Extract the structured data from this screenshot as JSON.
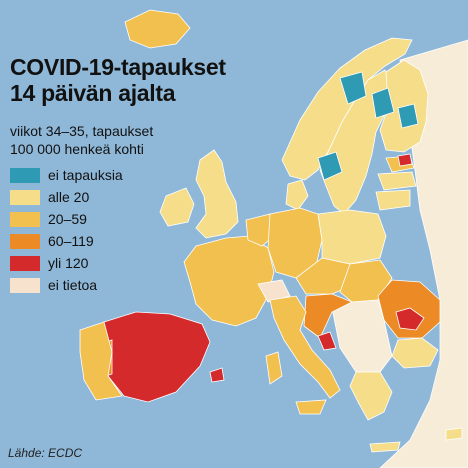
{
  "title": {
    "line1": "COVID-19-tapaukset",
    "line2": "14 päivän ajalta"
  },
  "subtitle": {
    "line1": "viikot 34–35, tapaukset",
    "line2": "100 000 henkeä kohti"
  },
  "legend": [
    {
      "label": "ei tapauksia",
      "color": "#2e9ab3"
    },
    {
      "label": "alle 20",
      "color": "#f5dd8a"
    },
    {
      "label": "20–59",
      "color": "#f2c04f"
    },
    {
      "label": "60–119",
      "color": "#ec8a25"
    },
    {
      "label": "yli 120",
      "color": "#d42a2b"
    },
    {
      "label": "ei tietoa",
      "color": "#f6e2cd"
    }
  ],
  "source": "Lähde: ECDC",
  "colors": {
    "sea": "#8fb8d8",
    "non_eu_land": "#f7ecd8",
    "border": "#ffffff"
  }
}
